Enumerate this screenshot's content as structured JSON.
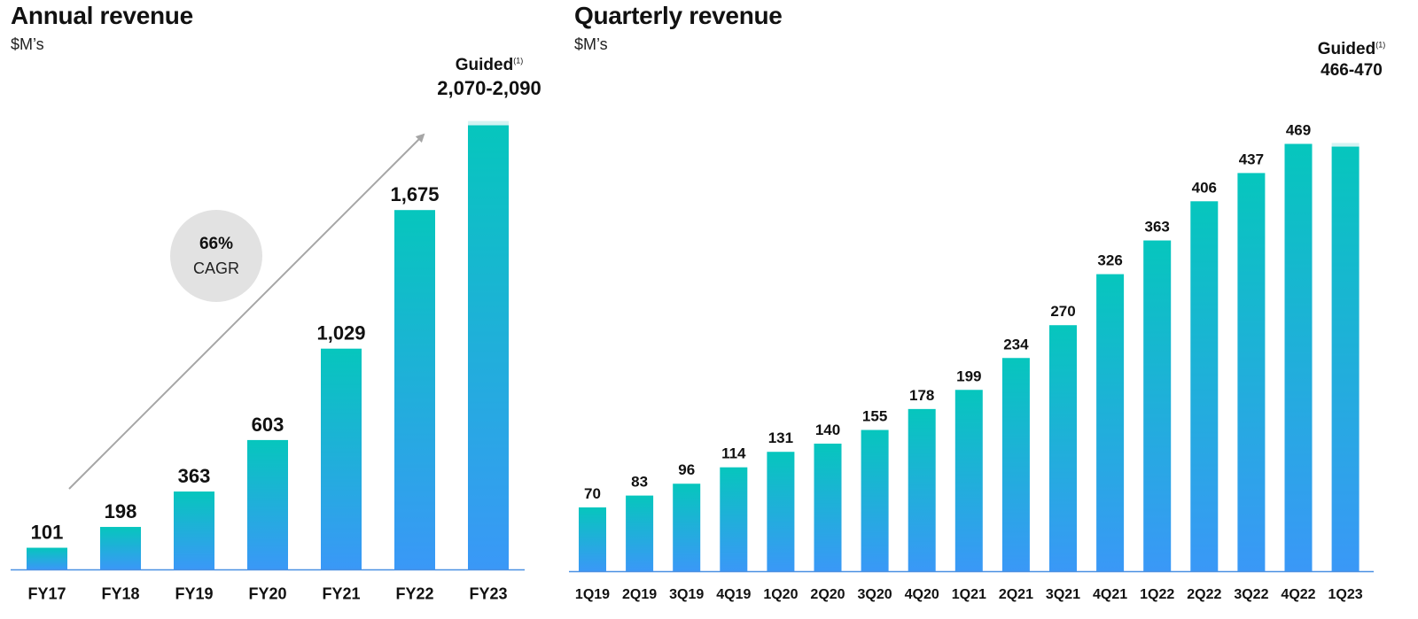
{
  "charts": {
    "annual": {
      "title": "Annual revenue",
      "subtitle": "$M’s",
      "guided_label": "Guided",
      "guided_footnote": "(1)",
      "guided_range": "2,070-2,090",
      "cagr_value": "66%",
      "cagr_label": "CAGR"
    },
    "quarterly": {
      "title": "Quarterly revenue",
      "subtitle": "$M’s",
      "guided_label": "Guided",
      "guided_footnote": "(1)",
      "guided_range": "466-470"
    }
  },
  "colors": {
    "bar_top": "#06c6bd",
    "bar_bottom": "#3a98f7",
    "guided_range_band": "#d3f3f2",
    "axis_line": "#4a90e2",
    "trend_arrow": "#a6a6a6",
    "text": "#111111"
  },
  "chart_data": [
    {
      "type": "bar",
      "title": "Annual revenue",
      "subtitle": "$M’s",
      "categories": [
        "FY17",
        "FY18",
        "FY19",
        "FY20",
        "FY21",
        "FY22",
        "FY23"
      ],
      "values": [
        101,
        198,
        363,
        603,
        1029,
        1675,
        2070
      ],
      "value_labels": [
        "101",
        "198",
        "363",
        "603",
        "1,029",
        "1,675",
        ""
      ],
      "guided": {
        "category": "FY23",
        "low": 2070,
        "high": 2090,
        "label": "2,070-2,090"
      },
      "annotation": "66% CAGR",
      "ylim": [
        0,
        2200
      ],
      "grid": false,
      "legend": "none"
    },
    {
      "type": "bar",
      "title": "Quarterly revenue",
      "subtitle": "$M’s",
      "categories": [
        "1Q19",
        "2Q19",
        "3Q19",
        "4Q19",
        "1Q20",
        "2Q20",
        "3Q20",
        "4Q20",
        "1Q21",
        "2Q21",
        "3Q21",
        "4Q21",
        "1Q22",
        "2Q22",
        "3Q22",
        "4Q22",
        "1Q23"
      ],
      "values": [
        70,
        83,
        96,
        114,
        131,
        140,
        155,
        178,
        199,
        234,
        270,
        326,
        363,
        406,
        437,
        469,
        466
      ],
      "value_labels": [
        "70",
        "83",
        "96",
        "114",
        "131",
        "140",
        "155",
        "178",
        "199",
        "234",
        "270",
        "326",
        "363",
        "406",
        "437",
        "469",
        ""
      ],
      "guided": {
        "category": "1Q23",
        "low": 466,
        "high": 470,
        "label": "466-470"
      },
      "ylim": [
        0,
        520
      ],
      "grid": false,
      "legend": "none"
    }
  ]
}
